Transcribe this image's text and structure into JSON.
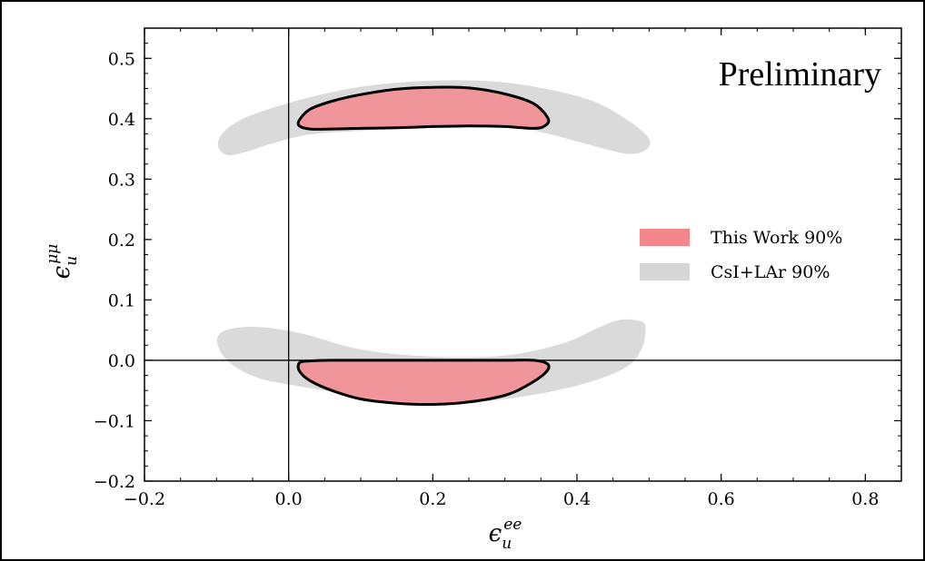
{
  "chart_data": {
    "type": "area",
    "title": "",
    "xlabel": {
      "base": "ϵ",
      "sub": "u",
      "sup": "ee"
    },
    "ylabel": {
      "base": "ϵ",
      "sub": "u",
      "sup": "μμ"
    },
    "xlim": [
      -0.2,
      0.85
    ],
    "ylim": [
      -0.2,
      0.55
    ],
    "xticks": [
      -0.2,
      0.0,
      0.2,
      0.4,
      0.6,
      0.8
    ],
    "xtick_labels": [
      "−0.2",
      "0.0",
      "0.2",
      "0.4",
      "0.6",
      "0.8"
    ],
    "yticks": [
      -0.2,
      -0.1,
      0.0,
      0.1,
      0.2,
      0.3,
      0.4,
      0.5
    ],
    "ytick_labels": [
      "−0.2",
      "−0.1",
      "0.0",
      "0.1",
      "0.2",
      "0.3",
      "0.4",
      "0.5"
    ],
    "grid": false,
    "reference_lines": {
      "x": 0.0,
      "y": 0.0
    },
    "annotation": "Preliminary",
    "legend": {
      "placement": "center-right"
    },
    "series": [
      {
        "name": "This Work 90%",
        "color": "#f4868b",
        "outline": "#000000",
        "regions": [
          [
            [
              0.015,
              0.398
            ],
            [
              0.03,
              0.416
            ],
            [
              0.06,
              0.429
            ],
            [
              0.1,
              0.44
            ],
            [
              0.15,
              0.449
            ],
            [
              0.2,
              0.452
            ],
            [
              0.25,
              0.451
            ],
            [
              0.3,
              0.441
            ],
            [
              0.34,
              0.425
            ],
            [
              0.36,
              0.4
            ],
            [
              0.355,
              0.388
            ],
            [
              0.34,
              0.384
            ],
            [
              0.3,
              0.387
            ],
            [
              0.25,
              0.388
            ],
            [
              0.2,
              0.387
            ],
            [
              0.15,
              0.385
            ],
            [
              0.1,
              0.384
            ],
            [
              0.06,
              0.383
            ],
            [
              0.03,
              0.383
            ],
            [
              0.015,
              0.388
            ]
          ],
          [
            [
              0.015,
              -0.004
            ],
            [
              0.03,
              -0.001
            ],
            [
              0.06,
              0.0
            ],
            [
              0.1,
              0.0
            ],
            [
              0.15,
              0.0
            ],
            [
              0.2,
              0.0
            ],
            [
              0.25,
              0.0
            ],
            [
              0.3,
              0.0
            ],
            [
              0.34,
              0.0
            ],
            [
              0.36,
              -0.007
            ],
            [
              0.355,
              -0.022
            ],
            [
              0.33,
              -0.042
            ],
            [
              0.3,
              -0.058
            ],
            [
              0.25,
              -0.069
            ],
            [
              0.2,
              -0.073
            ],
            [
              0.15,
              -0.071
            ],
            [
              0.1,
              -0.064
            ],
            [
              0.06,
              -0.05
            ],
            [
              0.03,
              -0.034
            ],
            [
              0.015,
              -0.018
            ]
          ]
        ]
      },
      {
        "name": "CsI+LAr 90%",
        "color": "#d6d6d6",
        "regions": [
          [
            [
              -0.098,
              0.355
            ],
            [
              -0.09,
              0.378
            ],
            [
              -0.06,
              0.402
            ],
            [
              0.0,
              0.426
            ],
            [
              0.06,
              0.444
            ],
            [
              0.12,
              0.456
            ],
            [
              0.2,
              0.463
            ],
            [
              0.28,
              0.462
            ],
            [
              0.35,
              0.451
            ],
            [
              0.42,
              0.43
            ],
            [
              0.47,
              0.398
            ],
            [
              0.5,
              0.367
            ],
            [
              0.495,
              0.348
            ],
            [
              0.47,
              0.342
            ],
            [
              0.42,
              0.356
            ],
            [
              0.36,
              0.375
            ],
            [
              0.3,
              0.388
            ],
            [
              0.2,
              0.385
            ],
            [
              0.1,
              0.38
            ],
            [
              0.03,
              0.374
            ],
            [
              -0.02,
              0.36
            ],
            [
              -0.06,
              0.345
            ],
            [
              -0.085,
              0.34
            ]
          ],
          [
            [
              -0.098,
              0.04
            ],
            [
              -0.08,
              0.052
            ],
            [
              -0.04,
              0.055
            ],
            [
              0.02,
              0.044
            ],
            [
              0.1,
              0.018
            ],
            [
              0.2,
              0.006
            ],
            [
              0.3,
              0.008
            ],
            [
              0.38,
              0.028
            ],
            [
              0.43,
              0.054
            ],
            [
              0.46,
              0.067
            ],
            [
              0.49,
              0.064
            ],
            [
              0.495,
              0.05
            ],
            [
              0.49,
              0.02
            ],
            [
              0.47,
              -0.01
            ],
            [
              0.42,
              -0.035
            ],
            [
              0.35,
              -0.055
            ],
            [
              0.27,
              -0.068
            ],
            [
              0.2,
              -0.07
            ],
            [
              0.12,
              -0.063
            ],
            [
              0.05,
              -0.05
            ],
            [
              0.0,
              -0.04
            ],
            [
              -0.04,
              -0.03
            ],
            [
              -0.075,
              -0.01
            ],
            [
              -0.095,
              0.015
            ]
          ]
        ]
      }
    ]
  }
}
